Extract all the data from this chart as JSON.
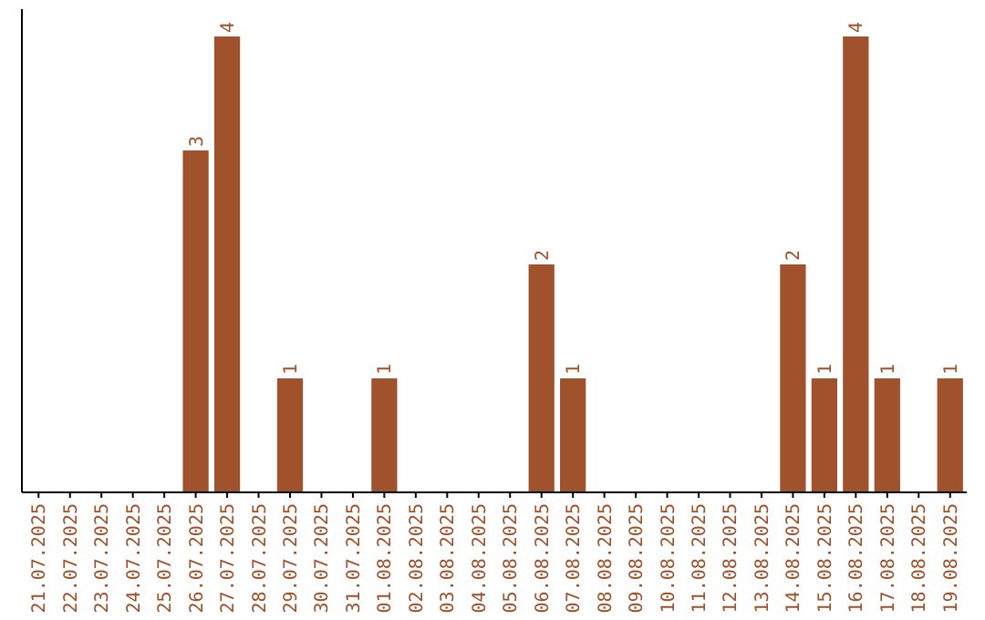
{
  "chart_data": {
    "type": "bar",
    "categories": [
      "21.07.2025",
      "22.07.2025",
      "23.07.2025",
      "24.07.2025",
      "25.07.2025",
      "26.07.2025",
      "27.07.2025",
      "28.07.2025",
      "29.07.2025",
      "30.07.2025",
      "31.07.2025",
      "01.08.2025",
      "02.08.2025",
      "03.08.2025",
      "04.08.2025",
      "05.08.2025",
      "06.08.2025",
      "07.08.2025",
      "08.08.2025",
      "09.08.2025",
      "10.08.2025",
      "11.08.2025",
      "12.08.2025",
      "13.08.2025",
      "14.08.2025",
      "15.08.2025",
      "16.08.2025",
      "17.08.2025",
      "18.08.2025",
      "19.08.2025"
    ],
    "values": [
      0,
      0,
      0,
      0,
      0,
      3,
      4,
      0,
      1,
      0,
      0,
      1,
      0,
      0,
      0,
      0,
      2,
      1,
      0,
      0,
      0,
      0,
      0,
      0,
      2,
      1,
      4,
      1,
      0,
      1
    ],
    "value_labels": [
      null,
      null,
      null,
      null,
      null,
      "3",
      "4",
      null,
      "1",
      null,
      null,
      "1",
      null,
      null,
      null,
      null,
      "2",
      "1",
      null,
      null,
      null,
      null,
      null,
      null,
      "2",
      "1",
      "4",
      "1",
      null,
      "1"
    ],
    "color": "#a0522d",
    "tick_labels": "x"
  }
}
